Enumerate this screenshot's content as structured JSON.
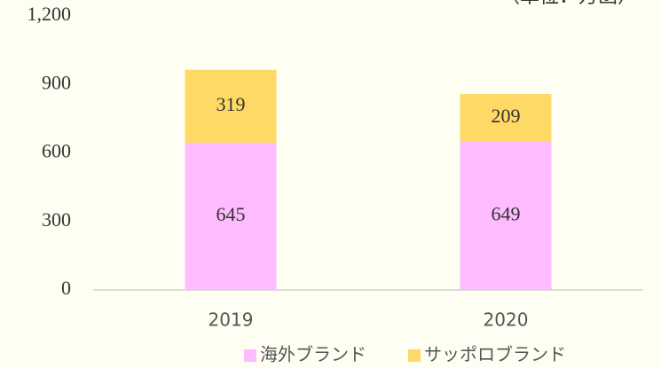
{
  "chart_data": {
    "type": "stacked_bar",
    "unit_label": "（単位：万函）",
    "categories": [
      "2019",
      "2020"
    ],
    "series": [
      {
        "name": "海外ブランド",
        "color": "#ffbbff",
        "values": [
          645,
          649
        ]
      },
      {
        "name": "サッポロブランド",
        "color": "#ffd966",
        "values": [
          319,
          209
        ]
      }
    ],
    "ylim": [
      0,
      1200
    ],
    "yticks": [
      0,
      300,
      600,
      900,
      {
        "value": 1200,
        "label": "1,200"
      }
    ],
    "grid": false
  }
}
